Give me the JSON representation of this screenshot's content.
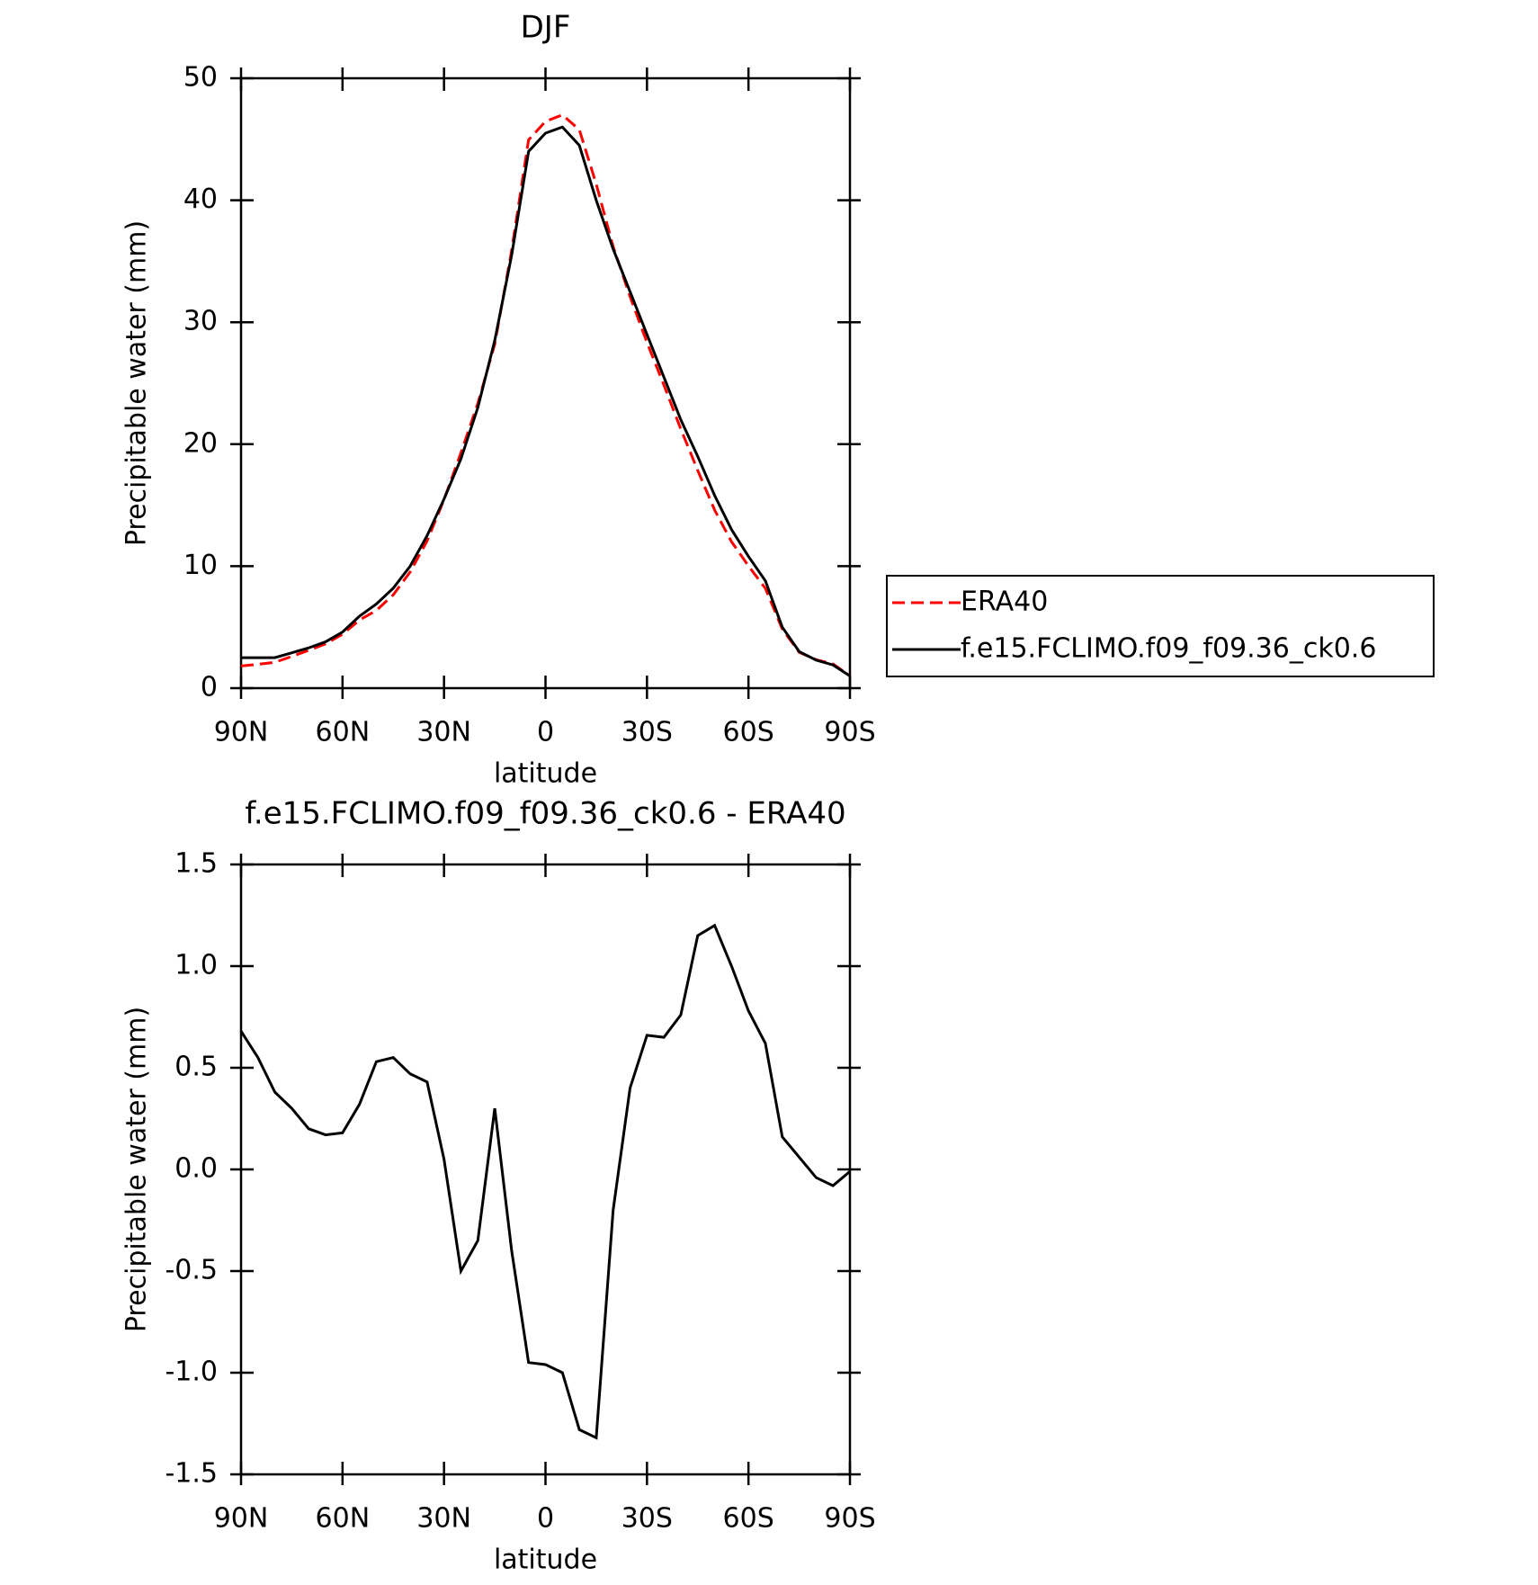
{
  "chart_data": [
    {
      "type": "line",
      "title": "DJF",
      "x_label": "latitude",
      "y_label": "Precipitable water (mm)",
      "x": [
        90,
        85,
        80,
        75,
        70,
        65,
        60,
        55,
        50,
        45,
        40,
        35,
        30,
        25,
        20,
        15,
        10,
        5,
        0,
        -5,
        -10,
        -15,
        -20,
        -25,
        -30,
        -35,
        -40,
        -45,
        -50,
        -55,
        -60,
        -65,
        -70,
        -75,
        -80,
        -85,
        -90
      ],
      "series": [
        {
          "name": "ERA40",
          "color": "#ff0000",
          "dashed": true,
          "values": [
            1.82,
            1.95,
            2.12,
            2.6,
            3.1,
            3.63,
            4.42,
            5.58,
            6.37,
            7.65,
            9.53,
            12.07,
            15.45,
            19.3,
            23.35,
            28.2,
            35.9,
            44.95,
            46.46,
            47.0,
            45.78,
            41.32,
            36.2,
            32.1,
            28.34,
            24.85,
            21.24,
            17.85,
            14.6,
            12.0,
            10.02,
            8.18,
            4.84,
            2.94,
            2.34,
            1.98,
            1.01
          ]
        },
        {
          "name": "f.e15.FCLIMO.f09_f09.36_ck0.6",
          "color": "#000000",
          "dashed": false,
          "values": [
            2.5,
            2.5,
            2.5,
            2.9,
            3.3,
            3.8,
            4.6,
            5.9,
            6.9,
            8.2,
            10.0,
            12.5,
            15.5,
            18.8,
            23.0,
            28.5,
            35.5,
            44.0,
            45.5,
            46.0,
            44.5,
            40.0,
            36.0,
            32.5,
            29.0,
            25.5,
            22.0,
            19.0,
            15.8,
            13.0,
            10.8,
            8.8,
            5.0,
            3.0,
            2.3,
            1.9,
            1.0
          ]
        }
      ],
      "xlim": [
        90,
        -90
      ],
      "xticks": [
        {
          "value": 90,
          "label": "90N"
        },
        {
          "value": 60,
          "label": "60N"
        },
        {
          "value": 30,
          "label": "30N"
        },
        0,
        {
          "value": -30,
          "label": "30S"
        },
        {
          "value": -60,
          "label": "60S"
        },
        {
          "value": -90,
          "label": "90S"
        }
      ],
      "ylim": [
        0,
        50
      ],
      "yticks": [
        0,
        10,
        20,
        30,
        40,
        50
      ],
      "legend": "outside-right"
    },
    {
      "type": "line",
      "title": "f.e15.FCLIMO.f09_f09.36_ck0.6 - ERA40",
      "x_label": "latitude",
      "y_label": "Precipitable water (mm)",
      "x": [
        90,
        85,
        80,
        75,
        70,
        65,
        60,
        55,
        50,
        45,
        40,
        35,
        30,
        25,
        20,
        15,
        10,
        5,
        0,
        -5,
        -10,
        -15,
        -20,
        -25,
        -30,
        -35,
        -40,
        -45,
        -50,
        -55,
        -60,
        -65,
        -70,
        -75,
        -80,
        -85,
        -90
      ],
      "color": "#000000",
      "values": [
        0.68,
        0.55,
        0.38,
        0.3,
        0.2,
        0.17,
        0.18,
        0.32,
        0.53,
        0.55,
        0.47,
        0.43,
        0.05,
        -0.5,
        -0.35,
        0.3,
        -0.4,
        -0.95,
        -0.96,
        -1.0,
        -1.28,
        -1.32,
        -0.2,
        0.4,
        0.66,
        0.65,
        0.76,
        1.15,
        1.2,
        1.0,
        0.78,
        0.62,
        0.16,
        0.06,
        -0.04,
        -0.08,
        -0.01
      ],
      "xlim": [
        90,
        -90
      ],
      "xticks": [
        {
          "value": 90,
          "label": "90N"
        },
        {
          "value": 60,
          "label": "60N"
        },
        {
          "value": 30,
          "label": "30N"
        },
        0,
        {
          "value": -30,
          "label": "30S"
        },
        {
          "value": -60,
          "label": "60S"
        },
        {
          "value": -90,
          "label": "90S"
        }
      ],
      "ylim": [
        -1.5,
        1.5
      ],
      "yticks": [
        {
          "value": -1.5,
          "label": "-1.5"
        },
        {
          "value": -1,
          "label": "-1.0"
        },
        {
          "value": -0.5,
          "label": "-0.5"
        },
        {
          "value": 0,
          "label": "0.0"
        },
        {
          "value": 0.5,
          "label": "0.5"
        },
        {
          "value": 1,
          "label": "1.0"
        },
        {
          "value": 1.5,
          "label": "1.5"
        }
      ]
    }
  ]
}
